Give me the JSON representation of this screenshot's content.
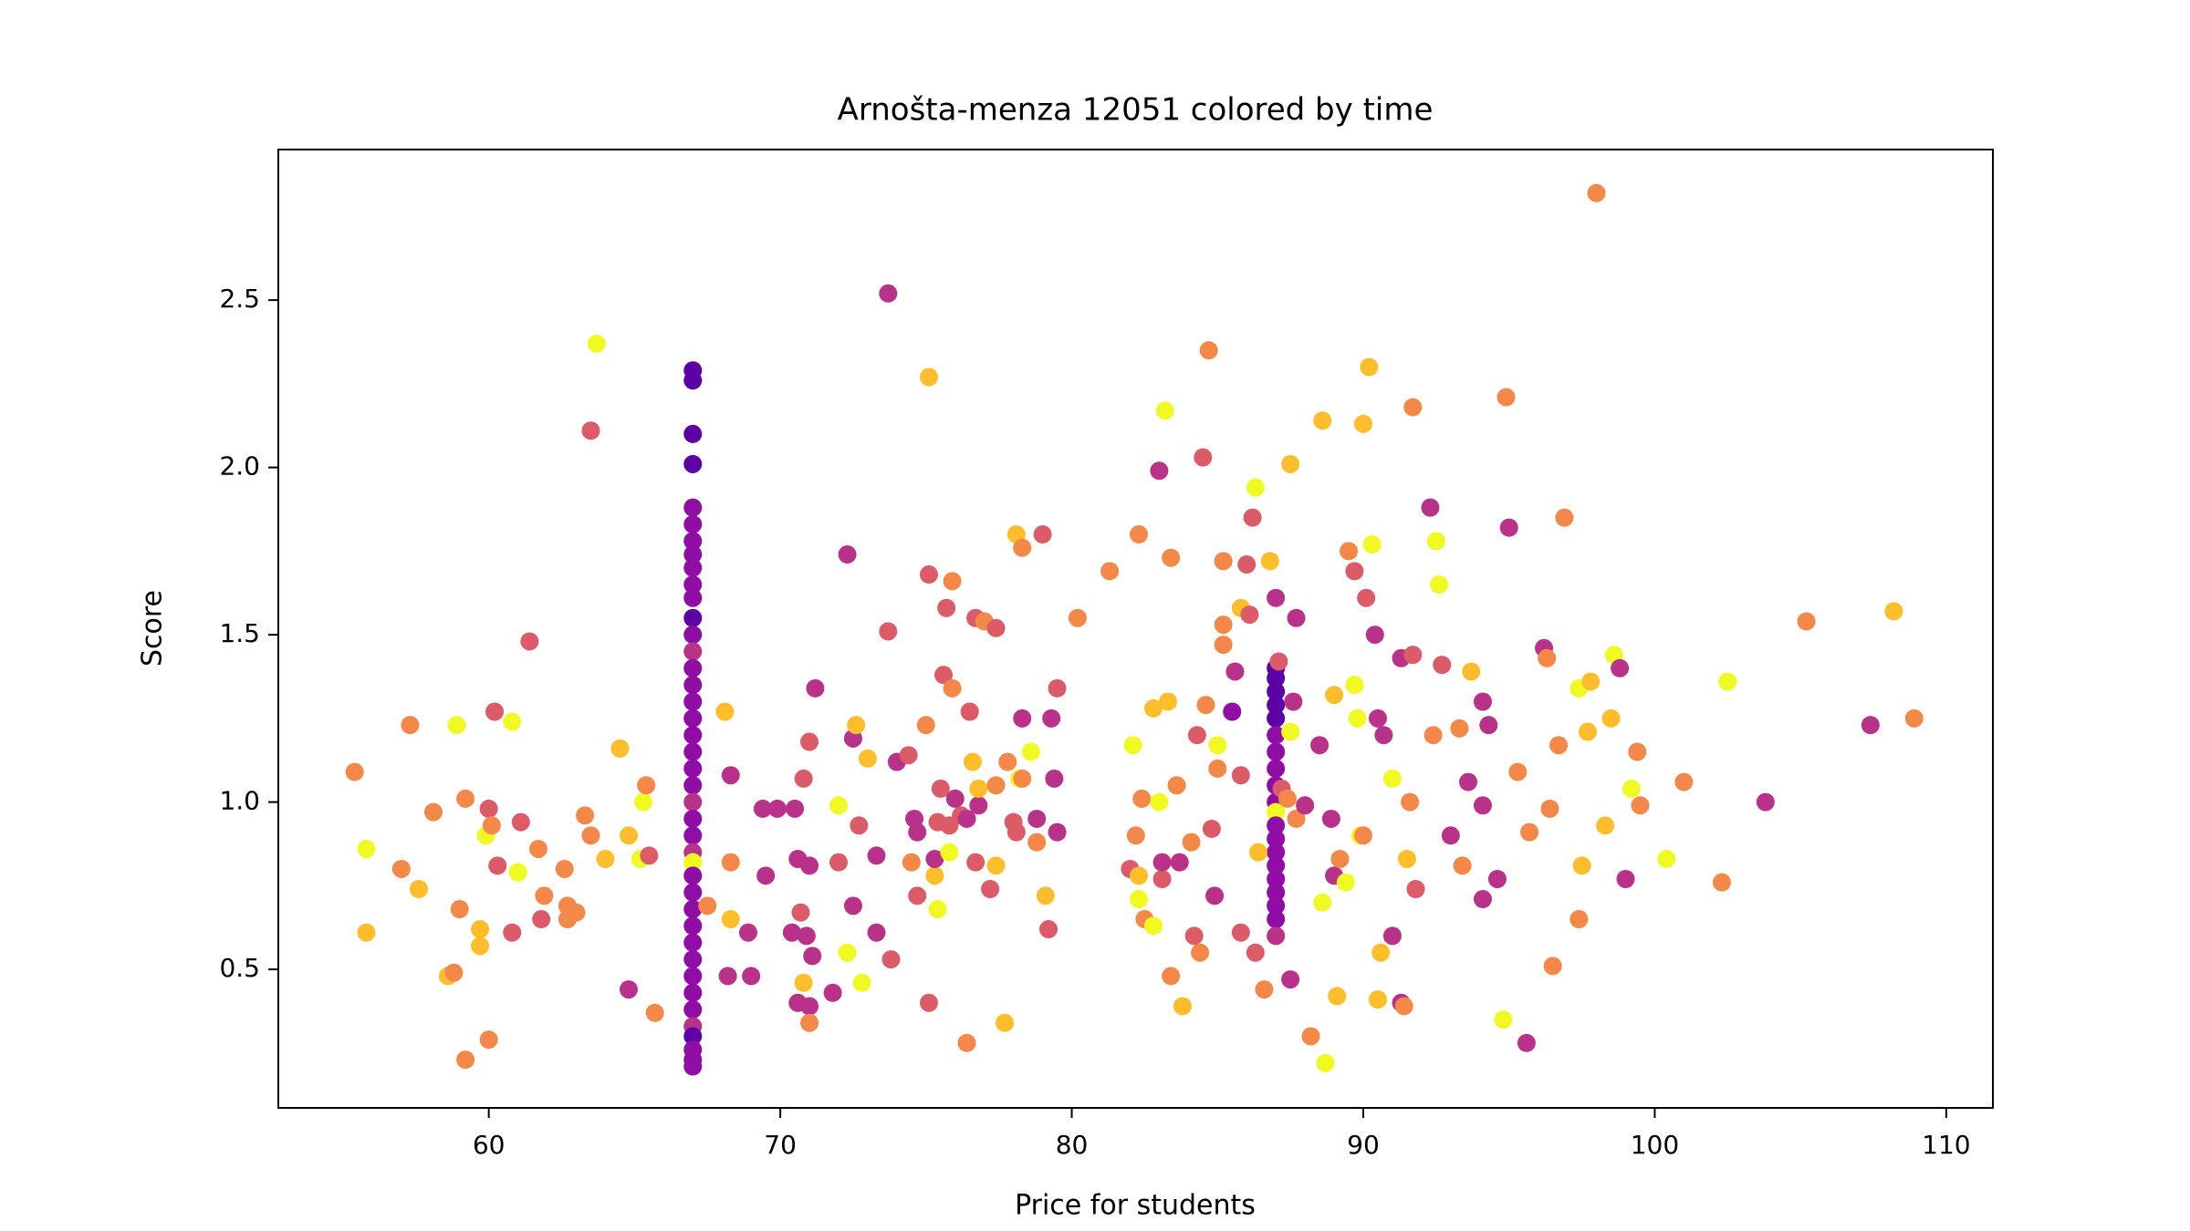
{
  "chart_data": {
    "type": "scatter",
    "title": "Arnošta-menza 12051 colored by time",
    "x_label": "Price for students",
    "y_label": "Score",
    "xlim": [
      52.78,
      111.6
    ],
    "ylim": [
      0.086,
      2.95
    ],
    "xticks": [
      60,
      70,
      80,
      90,
      100,
      110
    ],
    "yticks": [
      0.5,
      {
        "value": 1,
        "label": "1.0"
      },
      1.5,
      {
        "value": 2,
        "label": "2.0"
      },
      2.5
    ],
    "x": [
      67,
      67,
      67,
      67,
      67,
      67,
      67,
      67,
      67,
      67,
      67,
      67,
      67,
      67,
      67,
      67,
      67,
      67,
      67,
      67,
      67,
      67,
      67,
      67,
      67,
      67,
      67,
      67,
      67,
      67,
      67,
      67,
      67,
      67,
      67,
      67,
      67,
      67,
      67,
      67,
      67,
      87,
      87,
      87,
      87,
      87,
      87,
      87,
      87,
      87,
      87,
      87,
      87,
      87,
      87,
      87,
      87,
      87,
      87,
      87,
      87,
      87,
      55.4,
      55.8,
      55.8,
      57.0,
      57.3,
      57.6,
      58.1,
      58.6,
      58.9,
      58.8,
      59.0,
      59.2,
      59.2,
      59.7,
      59.7,
      59.9,
      60.0,
      60.0,
      60.2,
      60.1,
      60.3,
      60.8,
      60.8,
      61.0,
      61.1,
      61.4,
      61.7,
      61.9,
      61.8,
      62.6,
      62.7,
      62.7,
      63.0,
      63.3,
      63.5,
      63.5,
      63.7,
      64.0,
      64.5,
      64.8,
      64.8,
      65.2,
      65.3,
      65.4,
      65.5,
      65.7,
      67.5,
      68.1,
      68.3,
      68.3,
      68.2,
      68.3,
      68.9,
      69.0,
      69.4,
      69.5,
      69.9,
      70.4,
      70.5,
      70.6,
      70.6,
      70.7,
      70.8,
      70.8,
      71.0,
      70.9,
      71.0,
      71.0,
      71.0,
      71.1,
      71.2,
      71.8,
      72.0,
      72.0,
      72.3,
      72.3,
      72.5,
      72.6,
      72.5,
      72.7,
      73.0,
      72.8,
      73.3,
      73.3,
      73.7,
      73.7,
      73.8,
      74.0,
      74.4,
      74.5,
      74.6,
      74.7,
      74.7,
      75.0,
      75.1,
      75.1,
      75.1,
      75.3,
      75.3,
      75.4,
      75.4,
      75.5,
      75.6,
      75.7,
      75.8,
      75.8,
      75.9,
      75.9,
      76.0,
      76.2,
      76.4,
      76.4,
      76.5,
      76.7,
      76.7,
      76.6,
      76.8,
      76.8,
      77.0,
      77.2,
      77.4,
      77.4,
      77.4,
      77.7,
      77.8,
      78.0,
      78.1,
      78.2,
      78.1,
      78.3,
      78.3,
      78.3,
      78.6,
      78.8,
      78.8,
      79.0,
      79.1,
      79.2,
      79.3,
      79.4,
      79.5,
      79.5,
      80.2,
      81.3,
      82.0,
      82.1,
      82.2,
      82.3,
      82.3,
      82.3,
      82.4,
      82.5,
      82.8,
      82.8,
      83.0,
      83.0,
      83.1,
      83.2,
      83.1,
      83.3,
      83.4,
      83.4,
      83.6,
      83.7,
      83.8,
      84.1,
      84.2,
      84.3,
      84.4,
      84.5,
      84.6,
      84.7,
      84.8,
      84.9,
      85.0,
      85.0,
      85.2,
      85.2,
      85.2,
      85.5,
      85.6,
      85.8,
      85.8,
      85.8,
      86.0,
      86.1,
      86.2,
      86.3,
      86.3,
      86.4,
      86.6,
      86.8,
      87.1,
      87.2,
      87.4,
      87.5,
      87.5,
      87.5,
      87.6,
      87.7,
      87.7,
      88.0,
      88.2,
      88.5,
      88.6,
      88.6,
      88.7,
      88.9,
      89.0,
      89.0,
      89.1,
      89.2,
      89.4,
      89.5,
      89.7,
      89.7,
      89.8,
      89.9,
      90.0,
      90.0,
      90.1,
      90.2,
      90.3,
      90.4,
      90.5,
      90.5,
      90.6,
      90.7,
      91.0,
      91.0,
      91.3,
      91.3,
      91.4,
      91.5,
      91.6,
      91.7,
      91.7,
      91.8,
      92.3,
      92.5,
      92.6,
      92.4,
      92.7,
      93.0,
      93.3,
      93.4,
      93.6,
      93.7,
      94.1,
      94.1,
      94.1,
      94.3,
      94.6,
      94.8,
      94.9,
      95.0,
      95.3,
      95.6,
      95.7,
      96.2,
      96.3,
      96.4,
      96.5,
      96.7,
      96.9,
      97.4,
      97.4,
      97.5,
      97.7,
      97.8,
      98.0,
      98.3,
      98.5,
      98.6,
      98.8,
      99.0,
      99.2,
      99.4,
      99.5,
      100.4,
      101.0,
      102.3,
      102.5,
      103.8,
      105.2,
      107.4,
      108.2,
      108.9
    ],
    "y": [
      2.29,
      2.26,
      2.1,
      2.01,
      1.88,
      1.83,
      1.78,
      1.74,
      1.7,
      1.65,
      1.61,
      1.55,
      1.5,
      1.45,
      1.4,
      1.35,
      1.3,
      1.25,
      1.2,
      1.15,
      1.1,
      1.05,
      1.0,
      0.95,
      0.9,
      0.85,
      0.82,
      0.78,
      0.73,
      0.68,
      0.63,
      0.58,
      0.53,
      0.48,
      0.43,
      0.38,
      0.33,
      0.3,
      0.26,
      0.23,
      0.21,
      1.61,
      1.4,
      1.37,
      1.33,
      1.29,
      1.25,
      1.2,
      1.15,
      1.1,
      1.05,
      1.0,
      0.97,
      0.93,
      0.89,
      0.85,
      0.81,
      0.77,
      0.73,
      0.69,
      0.65,
      0.6,
      1.09,
      0.86,
      0.61,
      0.8,
      1.23,
      0.74,
      0.97,
      0.48,
      1.23,
      0.49,
      0.68,
      1.01,
      0.23,
      0.62,
      0.57,
      0.9,
      0.98,
      0.29,
      1.27,
      0.93,
      0.81,
      1.24,
      0.61,
      0.79,
      0.94,
      1.48,
      0.86,
      0.72,
      0.65,
      0.8,
      0.69,
      0.65,
      0.67,
      0.96,
      2.11,
      0.9,
      2.37,
      0.83,
      1.16,
      0.9,
      0.44,
      0.83,
      1.0,
      1.05,
      0.84,
      0.37,
      0.69,
      1.27,
      1.08,
      0.82,
      0.48,
      0.65,
      0.61,
      0.48,
      0.98,
      0.78,
      0.98,
      0.61,
      0.98,
      0.4,
      0.83,
      0.67,
      1.07,
      0.46,
      1.18,
      0.6,
      0.81,
      0.39,
      0.34,
      0.54,
      1.34,
      0.43,
      0.99,
      0.82,
      1.74,
      0.55,
      1.19,
      1.23,
      0.69,
      0.93,
      1.13,
      0.46,
      0.84,
      0.61,
      2.52,
      1.51,
      0.53,
      1.12,
      1.14,
      0.82,
      0.95,
      0.72,
      0.91,
      1.23,
      0.4,
      2.27,
      1.68,
      0.78,
      0.83,
      0.94,
      0.68,
      1.04,
      1.38,
      1.58,
      0.93,
      0.85,
      1.66,
      1.34,
      1.01,
      0.96,
      0.95,
      0.28,
      1.27,
      0.82,
      1.55,
      1.12,
      0.99,
      1.04,
      1.54,
      0.74,
      1.52,
      0.81,
      1.05,
      0.34,
      1.12,
      0.94,
      1.8,
      1.07,
      0.91,
      1.76,
      1.25,
      1.07,
      1.15,
      0.95,
      0.88,
      1.8,
      0.72,
      0.62,
      1.25,
      1.07,
      1.34,
      0.91,
      1.55,
      1.69,
      0.8,
      1.17,
      0.9,
      1.8,
      0.78,
      0.71,
      1.01,
      0.65,
      0.63,
      1.28,
      1.99,
      1.0,
      0.77,
      2.17,
      0.82,
      1.3,
      0.48,
      1.73,
      1.05,
      0.82,
      0.39,
      0.88,
      0.6,
      1.2,
      0.55,
      2.03,
      1.29,
      2.35,
      0.92,
      0.72,
      1.1,
      1.17,
      1.47,
      1.72,
      1.53,
      1.27,
      1.39,
      1.58,
      1.08,
      0.61,
      1.71,
      1.56,
      1.85,
      1.94,
      0.55,
      0.85,
      0.44,
      1.72,
      1.42,
      1.04,
      1.01,
      0.47,
      1.21,
      2.01,
      1.3,
      1.55,
      0.95,
      0.99,
      0.3,
      1.17,
      2.14,
      0.7,
      0.22,
      0.95,
      1.32,
      0.78,
      0.42,
      0.83,
      0.76,
      1.75,
      1.35,
      1.69,
      1.25,
      0.9,
      0.9,
      2.13,
      1.61,
      2.3,
      1.77,
      1.5,
      1.25,
      0.41,
      0.55,
      1.2,
      1.07,
      0.6,
      1.43,
      0.4,
      0.39,
      0.83,
      1.0,
      2.18,
      1.44,
      0.74,
      1.88,
      1.78,
      1.65,
      1.2,
      1.41,
      0.9,
      1.22,
      0.81,
      1.06,
      1.39,
      1.3,
      0.99,
      0.71,
      1.23,
      0.77,
      0.35,
      2.21,
      1.82,
      1.09,
      0.28,
      0.91,
      1.46,
      1.43,
      0.98,
      0.51,
      1.17,
      1.85,
      1.34,
      0.65,
      0.81,
      1.21,
      1.36,
      2.82,
      0.93,
      1.25,
      1.44,
      1.4,
      0.77,
      1.04,
      1.15,
      0.99,
      0.83,
      1.06,
      0.76,
      1.36,
      1.0,
      1.54,
      1.23,
      1.57,
      1.25
    ],
    "colors": [
      "#5c01a6",
      "#5c01a6",
      "#5c01a6",
      "#5c01a6",
      "#8f0da4",
      "#8f0da4",
      "#8f0da4",
      "#8f0da4",
      "#8f0da4",
      "#8f0da4",
      "#8f0da4",
      "#5c01a6",
      "#8f0da4",
      "#b83289",
      "#8f0da4",
      "#8f0da4",
      "#8f0da4",
      "#8f0da4",
      "#8f0da4",
      "#8f0da4",
      "#8f0da4",
      "#8f0da4",
      "#b83289",
      "#8f0da4",
      "#8f0da4",
      "#b83289",
      "#f0f921",
      "#8f0da4",
      "#8f0da4",
      "#8f0da4",
      "#8f0da4",
      "#8f0da4",
      "#8f0da4",
      "#8f0da4",
      "#8f0da4",
      "#8f0da4",
      "#b83289",
      "#5c01a6",
      "#8f0da4",
      "#8f0da4",
      "#8f0da4",
      "#b83289",
      "#5c01a6",
      "#5c01a6",
      "#5c01a6",
      "#5c01a6",
      "#5c01a6",
      "#8f0da4",
      "#8f0da4",
      "#8f0da4",
      "#8f0da4",
      "#8f0da4",
      "#f0f921",
      "#8f0da4",
      "#8f0da4",
      "#8f0da4",
      "#8f0da4",
      "#8f0da4",
      "#8f0da4",
      "#8f0da4",
      "#8f0da4",
      "#b83289",
      "#f48849",
      "#f0f921",
      "#febd2a",
      "#f48849",
      "#f48849",
      "#febd2a",
      "#f48849",
      "#febd2a",
      "#f0f921",
      "#f48849",
      "#f48849",
      "#f48849",
      "#f48849",
      "#febd2a",
      "#febd2a",
      "#f0f921",
      "#db5c68",
      "#f48849",
      "#db5c68",
      "#f48849",
      "#db5c68",
      "#f0f921",
      "#db5c68",
      "#f0f921",
      "#db5c68",
      "#db5c68",
      "#f48849",
      "#f48849",
      "#db5c68",
      "#f48849",
      "#f48849",
      "#f48849",
      "#f48849",
      "#f48849",
      "#db5c68",
      "#f48849",
      "#f0f921",
      "#febd2a",
      "#febd2a",
      "#febd2a",
      "#b83289",
      "#f0f921",
      "#f0f921",
      "#f48849",
      "#db5c68",
      "#f48849",
      "#f48849",
      "#febd2a",
      "#b83289",
      "#f48849",
      "#b83289",
      "#febd2a",
      "#b83289",
      "#b83289",
      "#b83289",
      "#b83289",
      "#b83289",
      "#b83289",
      "#b83289",
      "#b83289",
      "#b83289",
      "#db5c68",
      "#db5c68",
      "#febd2a",
      "#db5c68",
      "#b83289",
      "#b83289",
      "#b83289",
      "#f48849",
      "#b83289",
      "#b83289",
      "#b83289",
      "#f0f921",
      "#db5c68",
      "#b83289",
      "#f0f921",
      "#b83289",
      "#febd2a",
      "#b83289",
      "#db5c68",
      "#febd2a",
      "#f0f921",
      "#b83289",
      "#b83289",
      "#b83289",
      "#db5c68",
      "#db5c68",
      "#b83289",
      "#db5c68",
      "#f48849",
      "#b83289",
      "#db5c68",
      "#b83289",
      "#f48849",
      "#db5c68",
      "#febd2a",
      "#db5c68",
      "#febd2a",
      "#b83289",
      "#db5c68",
      "#f0f921",
      "#db5c68",
      "#db5c68",
      "#db5c68",
      "#db5c68",
      "#f0f921",
      "#f48849",
      "#f48849",
      "#b83289",
      "#db5c68",
      "#b83289",
      "#f48849",
      "#db5c68",
      "#db5c68",
      "#db5c68",
      "#febd2a",
      "#b83289",
      "#febd2a",
      "#f48849",
      "#db5c68",
      "#db5c68",
      "#febd2a",
      "#f48849",
      "#febd2a",
      "#f48849",
      "#db5c68",
      "#febd2a",
      "#f0f921",
      "#db5c68",
      "#f48849",
      "#b83289",
      "#f48849",
      "#f0f921",
      "#b83289",
      "#f48849",
      "#db5c68",
      "#febd2a",
      "#db5c68",
      "#b83289",
      "#b83289",
      "#db5c68",
      "#b83289",
      "#f48849",
      "#f48849",
      "#db5c68",
      "#f0f921",
      "#f48849",
      "#f48849",
      "#febd2a",
      "#f0f921",
      "#f48849",
      "#f48849",
      "#f0f921",
      "#febd2a",
      "#b83289",
      "#f0f921",
      "#db5c68",
      "#f0f921",
      "#b83289",
      "#febd2a",
      "#f48849",
      "#f48849",
      "#f48849",
      "#b83289",
      "#febd2a",
      "#f48849",
      "#db5c68",
      "#db5c68",
      "#f48849",
      "#db5c68",
      "#f48849",
      "#f48849",
      "#db5c68",
      "#b83289",
      "#f48849",
      "#f0f921",
      "#f48849",
      "#f48849",
      "#f48849",
      "#8f0da4",
      "#b83289",
      "#febd2a",
      "#db5c68",
      "#db5c68",
      "#db5c68",
      "#db5c68",
      "#db5c68",
      "#f0f921",
      "#db5c68",
      "#febd2a",
      "#f48849",
      "#febd2a",
      "#db5c68",
      "#db5c68",
      "#f48849",
      "#b83289",
      "#f0f921",
      "#febd2a",
      "#b83289",
      "#b83289",
      "#f48849",
      "#b83289",
      "#f48849",
      "#b83289",
      "#febd2a",
      "#f0f921",
      "#f0f921",
      "#b83289",
      "#febd2a",
      "#b83289",
      "#febd2a",
      "#f48849",
      "#f0f921",
      "#f48849",
      "#f0f921",
      "#db5c68",
      "#f0f921",
      "#f0f921",
      "#f48849",
      "#febd2a",
      "#db5c68",
      "#febd2a",
      "#f0f921",
      "#b83289",
      "#b83289",
      "#febd2a",
      "#febd2a",
      "#b83289",
      "#f0f921",
      "#b83289",
      "#b83289",
      "#b83289",
      "#f48849",
      "#febd2a",
      "#f48849",
      "#f48849",
      "#db5c68",
      "#db5c68",
      "#b83289",
      "#f0f921",
      "#f0f921",
      "#f48849",
      "#db5c68",
      "#b83289",
      "#f48849",
      "#f48849",
      "#b83289",
      "#febd2a",
      "#b83289",
      "#b83289",
      "#b83289",
      "#b83289",
      "#b83289",
      "#f0f921",
      "#f48849",
      "#b83289",
      "#f48849",
      "#b83289",
      "#f48849",
      "#b83289",
      "#f48849",
      "#f48849",
      "#f48849",
      "#f48849",
      "#f48849",
      "#f0f921",
      "#f48849",
      "#febd2a",
      "#febd2a",
      "#febd2a",
      "#f48849",
      "#febd2a",
      "#febd2a",
      "#f0f921",
      "#b83289",
      "#b83289",
      "#f0f921",
      "#f48849",
      "#f48849",
      "#f0f921",
      "#f48849",
      "#f48849",
      "#f0f921",
      "#b83289",
      "#f48849",
      "#b83289",
      "#febd2a",
      "#f48849"
    ]
  }
}
